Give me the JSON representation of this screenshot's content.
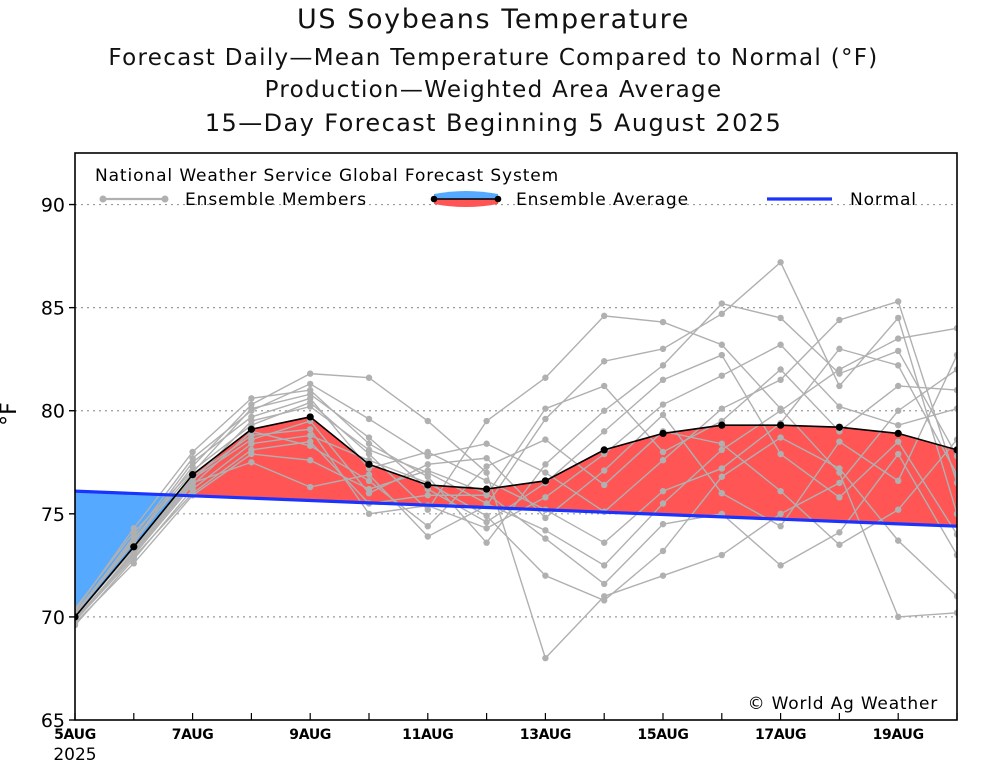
{
  "titles": {
    "main": "US Soybeans Temperature",
    "line2": "Forecast Daily—Mean Temperature Compared to Normal (°F)",
    "line3": "Production—Weighted Area Average",
    "line4": "15—Day Forecast Beginning 5 August 2025"
  },
  "legend": {
    "header": "National Weather Service Global Forecast System",
    "members": "Ensemble Members",
    "average": "Ensemble Average",
    "normal": "Normal"
  },
  "credit": "© World Ag Weather",
  "colors": {
    "above": "#ff5555",
    "below": "#55aaff",
    "normal": "#1a33ff",
    "members": "#b0b0b0",
    "average": "#000000"
  },
  "chart_data": {
    "type": "line",
    "title": "US Soybeans Temperature",
    "subtitle": "Forecast Daily-Mean Temperature Compared to Normal (°F) / Production-Weighted Area Average / 15-Day Forecast Beginning 5 August 2025",
    "ylabel": "°F",
    "xlabel": "",
    "ylim": [
      65,
      92.5
    ],
    "xlim": [
      0,
      15
    ],
    "yticks": [
      65,
      70,
      75,
      80,
      85,
      90
    ],
    "xticks": [
      {
        "x": 0,
        "label": "5AUG",
        "sub": "2025"
      },
      {
        "x": 2,
        "label": "7AUG"
      },
      {
        "x": 4,
        "label": "9AUG"
      },
      {
        "x": 6,
        "label": "11AUG"
      },
      {
        "x": 8,
        "label": "13AUG"
      },
      {
        "x": 10,
        "label": "15AUG"
      },
      {
        "x": 12,
        "label": "17AUG"
      },
      {
        "x": 14,
        "label": "19AUG"
      }
    ],
    "grid": "horizontal dotted",
    "normal": {
      "name": "Normal",
      "start": 76.1,
      "end": 74.4
    },
    "ensemble_average": {
      "name": "Ensemble Average",
      "x": [
        0,
        1,
        2,
        3,
        4,
        5,
        6,
        7,
        8,
        9,
        10,
        11,
        12,
        13,
        14,
        15
      ],
      "values": [
        70.0,
        73.4,
        76.9,
        79.1,
        79.7,
        77.4,
        76.4,
        76.2,
        76.6,
        78.1,
        78.9,
        79.3,
        79.3,
        79.2,
        78.9,
        78.1
      ]
    },
    "ensemble_members": [
      {
        "name": "m1",
        "values": [
          69.8,
          73.2,
          76.6,
          79.5,
          80.2,
          78.1,
          77.0,
          75.5,
          74.2,
          72.5,
          75.5,
          78.1,
          80.0,
          82.0,
          83.5,
          84.0
        ]
      },
      {
        "name": "m2",
        "values": [
          70.2,
          73.6,
          77.3,
          80.3,
          81.8,
          81.6,
          79.5,
          77.0,
          68.0,
          71.0,
          72.0,
          73.0,
          75.0,
          76.5,
          80.0,
          82.0
        ]
      },
      {
        "name": "m3",
        "values": [
          69.9,
          73.1,
          76.5,
          77.5,
          76.3,
          76.9,
          73.9,
          75.4,
          79.6,
          82.4,
          83.0,
          84.7,
          87.2,
          81.2,
          84.5,
          75.0
        ]
      },
      {
        "name": "m4",
        "values": [
          70.1,
          73.9,
          77.7,
          80.0,
          81.3,
          79.6,
          77.8,
          78.4,
          77.0,
          75.1,
          77.6,
          80.1,
          81.5,
          84.4,
          85.3,
          76.5
        ]
      },
      {
        "name": "m5",
        "values": [
          69.6,
          72.8,
          76.2,
          78.4,
          78.8,
          77.6,
          76.5,
          74.9,
          72.0,
          70.8,
          73.2,
          76.8,
          78.7,
          77.2,
          73.7,
          71.0
        ]
      },
      {
        "name": "m6",
        "values": [
          70.4,
          74.1,
          77.1,
          79.3,
          80.4,
          77.9,
          75.2,
          79.5,
          81.6,
          84.6,
          84.3,
          83.2,
          80.1,
          77.0,
          70.0,
          70.2
        ]
      },
      {
        "name": "m7",
        "values": [
          70.0,
          73.4,
          76.8,
          78.8,
          79.1,
          75.0,
          75.4,
          74.3,
          75.8,
          77.9,
          80.3,
          81.7,
          83.2,
          80.2,
          79.3,
          80.1
        ]
      },
      {
        "name": "m8",
        "values": [
          69.7,
          72.6,
          75.9,
          77.9,
          77.6,
          76.2,
          77.1,
          76.0,
          73.8,
          71.6,
          74.5,
          75.0,
          72.5,
          74.1,
          77.9,
          73.0
        ]
      },
      {
        "name": "m9",
        "values": [
          70.3,
          74.3,
          78.0,
          80.6,
          81.0,
          78.4,
          76.8,
          73.6,
          77.4,
          80.0,
          82.2,
          85.2,
          84.5,
          81.8,
          82.9,
          77.8
        ]
      },
      {
        "name": "m10",
        "values": [
          69.9,
          73.0,
          76.4,
          79.0,
          78.3,
          76.6,
          74.4,
          77.3,
          78.6,
          76.4,
          79.0,
          78.4,
          76.1,
          73.5,
          75.2,
          78.6
        ]
      },
      {
        "name": "m11",
        "values": [
          70.1,
          73.7,
          77.5,
          79.7,
          80.6,
          77.2,
          78.0,
          76.6,
          75.2,
          73.6,
          76.1,
          77.2,
          79.4,
          83.0,
          82.2,
          76.9
        ]
      },
      {
        "name": "m12",
        "values": [
          69.8,
          72.9,
          76.0,
          78.1,
          78.5,
          75.5,
          75.9,
          75.9,
          80.1,
          81.2,
          78.0,
          79.5,
          82.0,
          79.0,
          81.2,
          81.0
        ]
      },
      {
        "name": "m13",
        "values": [
          70.2,
          73.8,
          77.0,
          80.1,
          80.8,
          78.7,
          76.2,
          74.6,
          76.5,
          79.0,
          81.5,
          82.7,
          77.9,
          75.8,
          78.5,
          74.0
        ]
      },
      {
        "name": "m14",
        "values": [
          70.0,
          73.3,
          76.7,
          78.6,
          79.5,
          76.0,
          77.4,
          77.7,
          74.8,
          77.1,
          79.8,
          76.0,
          74.4,
          78.5,
          76.6,
          82.7
        ]
      }
    ]
  }
}
